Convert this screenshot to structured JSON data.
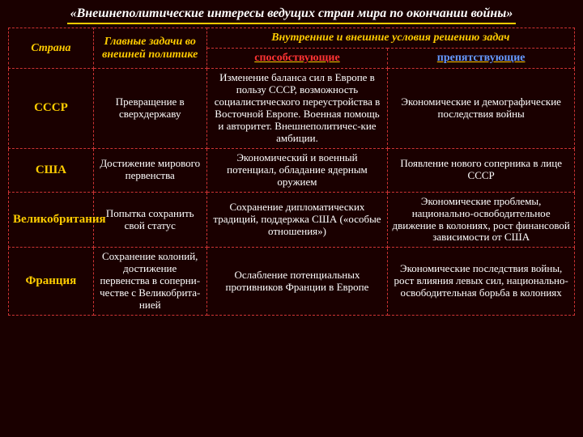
{
  "title": "«Внешнеполитические интересы ведущих стран мира по окончании войны»",
  "headers": {
    "country": "Страна",
    "tasks": "Главные задачи во внешней политике",
    "conditions": "Внутренние и внешние условия решению задач",
    "favorable": "способствующие",
    "unfavorable": "препятствующие"
  },
  "rows": [
    {
      "country": "СССР",
      "task": "Превращение в сверхдержаву",
      "favorable": "Изменение баланса сил в Европе в пользу СССР, возможность социалистического переустройства в Восточной Европе. Военная помощь и авторитет. Внешнеполитичес-кие амбиции.",
      "unfavorable": "Экономические и демографические последствия войны"
    },
    {
      "country": "США",
      "task": "Достижение мирового первенства",
      "favorable": "Экономический и военный потенциал, обладание ядерным оружием",
      "unfavorable": "Появление нового соперника в лице СССР"
    },
    {
      "country": "Великобритания",
      "task": "Попытка сохранить свой статус",
      "favorable": "Сохранение дипломатических традиций, поддержка США («особые отношения»)",
      "unfavorable": "Экономические проблемы, национально-освободительное движение в колониях, рост финансовой зависимости от США"
    },
    {
      "country": "Франция",
      "task": "Сохранение колоний, достижение первенства в соперни-честве с Великобрита-нией",
      "favorable": "Ослабление потенциальных противников Франции в Европе",
      "unfavorable": "Экономические последствия войны, рост влияния левых сил, национально-освободительная борьба в колониях"
    }
  ],
  "style": {
    "bg": "#1a0000",
    "hdr_color": "#ffcc00",
    "fav_color": "#ff3333",
    "unfav_color": "#6699ff",
    "border": "#cc3333"
  }
}
